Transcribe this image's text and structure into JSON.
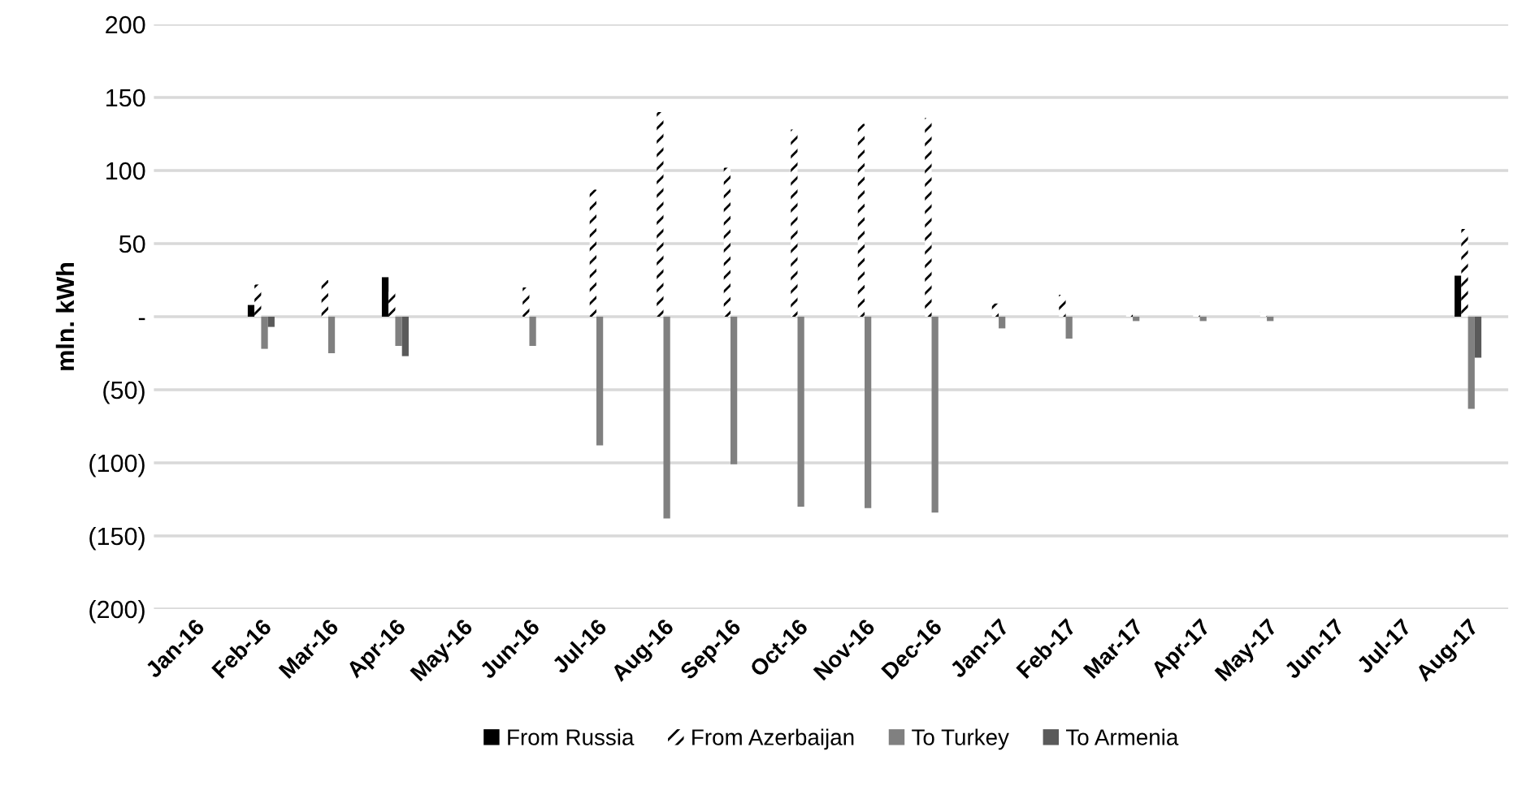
{
  "chart_data": {
    "type": "bar",
    "ylabel": "mln. kWh",
    "categories": [
      "Jan-16",
      "Feb-16",
      "Mar-16",
      "Apr-16",
      "May-16",
      "Jun-16",
      "Jul-16",
      "Aug-16",
      "Sep-16",
      "Oct-16",
      "Nov-16",
      "Dec-16",
      "Jan-17",
      "Feb-17",
      "Mar-17",
      "Apr-17",
      "May-17",
      "Jun-17",
      "Jul-17",
      "Aug-17"
    ],
    "series": [
      {
        "name": "From Russia",
        "color": "#000000",
        "values": [
          null,
          8,
          null,
          27,
          null,
          null,
          null,
          null,
          null,
          null,
          null,
          null,
          null,
          null,
          null,
          null,
          null,
          null,
          null,
          28
        ]
      },
      {
        "name": "From Azerbaijan",
        "color": "#000000",
        "line_style": "dashed",
        "values": [
          null,
          22,
          25,
          17,
          null,
          20,
          87,
          140,
          102,
          128,
          132,
          136,
          9,
          15,
          3,
          2,
          3,
          null,
          null,
          60
        ]
      },
      {
        "name": "To Turkey",
        "color": "#808080",
        "values": [
          null,
          -22,
          -25,
          -20,
          null,
          -20,
          -88,
          -138,
          -101,
          -130,
          -131,
          -134,
          -8,
          -15,
          -3,
          -3,
          -3,
          null,
          null,
          -63
        ]
      },
      {
        "name": "To Armenia",
        "color": "#5a5a5a",
        "values": [
          null,
          -7,
          null,
          -27,
          null,
          null,
          null,
          null,
          null,
          null,
          null,
          null,
          null,
          null,
          null,
          null,
          null,
          null,
          null,
          -28
        ]
      }
    ],
    "ylim": [
      -200,
      200
    ],
    "yticks": [
      {
        "value": -200,
        "label": "(200)"
      },
      {
        "value": -150,
        "label": "(150)"
      },
      {
        "value": -100,
        "label": "(100)"
      },
      {
        "value": -50,
        "label": "(50)"
      },
      {
        "value": 0,
        "label": "-"
      },
      50,
      100,
      150,
      200
    ],
    "grid": "y",
    "legend": "bottom"
  }
}
